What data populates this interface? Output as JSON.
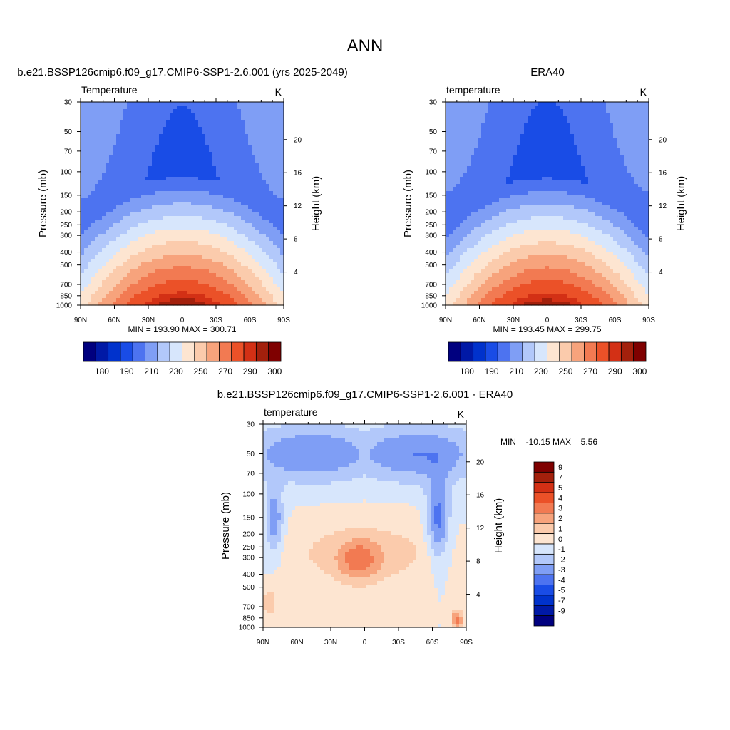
{
  "page": {
    "title": "ANN"
  },
  "colors": {
    "model_levels": [
      "#00007f",
      "#0019a6",
      "#0032cc",
      "#194ce6",
      "#4d73f0",
      "#7f9ef5",
      "#b2c8fa",
      "#d7e6fc",
      "#fde5d1",
      "#fbcbac",
      "#f7a37c",
      "#f27a52",
      "#eb5128",
      "#d33015",
      "#a3200c",
      "#7f0000"
    ],
    "diff_levels": [
      "#00007f",
      "#0019a6",
      "#0032cc",
      "#194ce6",
      "#4d73f0",
      "#7f9ef5",
      "#b2c8fa",
      "#d7e6fc",
      "#fde5d1",
      "#fbcbac",
      "#f7a37c",
      "#f27a52",
      "#eb5128",
      "#d33015",
      "#a3200c",
      "#7f0000"
    ]
  },
  "chart_data": [
    {
      "type": "heatmap",
      "id": "model",
      "title": "b.e21.BSSP126cmip6.f09_g17.CMIP6-SSP1-2.6.001 (yrs 2025-2049)",
      "left_label": "Temperature",
      "right_label": "K",
      "ylabel": "Pressure (mb)",
      "ylabel2": "Height (km)",
      "xticks": [
        "90N",
        "60N",
        "30N",
        "0",
        "30S",
        "60S",
        "90S"
      ],
      "xlim": [
        90,
        -90
      ],
      "yticks": [
        30,
        50,
        70,
        100,
        150,
        200,
        250,
        300,
        400,
        500,
        700,
        850,
        1000
      ],
      "ylim": [
        1000,
        30
      ],
      "yscale": "log",
      "height_ticks": [
        4,
        8,
        12,
        16,
        20
      ],
      "stats": "MIN = 193.90  MAX = 300.71",
      "colorbar": {
        "orientation": "horizontal",
        "labels": [
          "180",
          "190",
          "210",
          "230",
          "250",
          "270",
          "290",
          "300"
        ]
      },
      "field": {
        "min": 193.9,
        "max": 300.71,
        "levels": [
          175,
          180,
          185,
          190,
          200,
          210,
          220,
          230,
          240,
          250,
          260,
          270,
          280,
          290,
          295,
          300
        ]
      }
    },
    {
      "type": "heatmap",
      "id": "obs",
      "title": "ERA40",
      "left_label": "temperature",
      "right_label": "K",
      "ylabel": "Pressure (mb)",
      "ylabel2": "Height (km)",
      "xticks": [
        "90N",
        "60N",
        "30N",
        "0",
        "30S",
        "60S",
        "90S"
      ],
      "xlim": [
        90,
        -90
      ],
      "yticks": [
        30,
        50,
        70,
        100,
        150,
        200,
        250,
        300,
        400,
        500,
        700,
        850,
        1000
      ],
      "ylim": [
        1000,
        30
      ],
      "yscale": "log",
      "height_ticks": [
        4,
        8,
        12,
        16,
        20
      ],
      "stats": "MIN = 193.45  MAX = 299.75",
      "colorbar": {
        "orientation": "horizontal",
        "labels": [
          "180",
          "190",
          "210",
          "230",
          "250",
          "270",
          "290",
          "300"
        ]
      },
      "field": {
        "min": 193.45,
        "max": 299.75,
        "levels": [
          175,
          180,
          185,
          190,
          200,
          210,
          220,
          230,
          240,
          250,
          260,
          270,
          280,
          290,
          295,
          300
        ]
      }
    },
    {
      "type": "heatmap",
      "id": "diff",
      "title": "b.e21.BSSP126cmip6.f09_g17.CMIP6-SSP1-2.6.001 - ERA40",
      "left_label": "temperature",
      "right_label": "K",
      "ylabel": "Pressure (mb)",
      "ylabel2": "Height (km)",
      "xticks": [
        "90N",
        "60N",
        "30N",
        "0",
        "30S",
        "60S",
        "90S"
      ],
      "xlim": [
        90,
        -90
      ],
      "yticks": [
        30,
        50,
        70,
        100,
        150,
        200,
        250,
        300,
        400,
        500,
        700,
        850,
        1000
      ],
      "ylim": [
        1000,
        30
      ],
      "yscale": "log",
      "height_ticks": [
        4,
        8,
        12,
        16,
        20
      ],
      "stats": "MIN = -10.15  MAX =   5.56",
      "colorbar": {
        "orientation": "vertical",
        "labels": [
          "9",
          "7",
          "5",
          "4",
          "3",
          "2",
          "1",
          "0",
          "-1",
          "-2",
          "-3",
          "-4",
          "-5",
          "-7",
          "-9"
        ]
      },
      "field": {
        "min": -10.15,
        "max": 5.56,
        "levels": [
          -10,
          -9,
          -7,
          -5,
          -4,
          -3,
          -2,
          -1,
          0,
          1,
          2,
          3,
          4,
          5,
          7,
          9
        ]
      }
    }
  ]
}
